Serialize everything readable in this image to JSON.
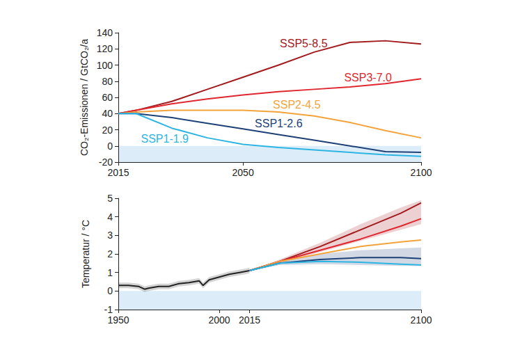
{
  "chart_data": [
    {
      "type": "line",
      "y_label": "CO₂-Emissionen / GtCO₂/a",
      "xlim": [
        2015,
        2100
      ],
      "xticks": [
        2015,
        2050,
        2100
      ],
      "ylim": [
        -20,
        140
      ],
      "yticks": [
        -20,
        0,
        20,
        40,
        60,
        80,
        100,
        120,
        140
      ],
      "grid": false,
      "legend": "inline",
      "bands": [
        {
          "from": -20,
          "to": 0
        }
      ],
      "x": [
        2015,
        2020,
        2030,
        2040,
        2050,
        2060,
        2070,
        2080,
        2090,
        2100
      ],
      "series": [
        {
          "name": "SSP5-8.5",
          "color": "#a3191c",
          "values": [
            40,
            44,
            55,
            70,
            85,
            100,
            116,
            128,
            130,
            126
          ]
        },
        {
          "name": "SSP3-7.0",
          "color": "#e0262f",
          "values": [
            40,
            44,
            52,
            58,
            63,
            67,
            70,
            73,
            77,
            83
          ]
        },
        {
          "name": "SSP2-4.5",
          "color": "#f3a33a",
          "values": [
            40,
            42,
            44,
            44,
            44,
            42,
            37,
            29,
            19,
            10
          ]
        },
        {
          "name": "SSP1-2.6",
          "color": "#1d4176",
          "values": [
            40,
            40,
            35,
            28,
            21,
            14,
            7,
            0,
            -7,
            -8
          ]
        },
        {
          "name": "SSP1-1.9",
          "color": "#2cb5e3",
          "values": [
            40,
            40,
            22,
            10,
            2,
            -2,
            -5,
            -8,
            -11,
            -13
          ]
        }
      ]
    },
    {
      "type": "line",
      "y_label": "Temperatur / °C",
      "xlim": [
        1950,
        2100
      ],
      "xticks": [
        1950,
        2000,
        2015,
        2100
      ],
      "ylim": [
        -1,
        5
      ],
      "yticks": [
        -1,
        0,
        1,
        2,
        3,
        4,
        5
      ],
      "grid": false,
      "bands": [
        {
          "from": -1,
          "to": 0
        }
      ],
      "series": [
        {
          "color": "#222222",
          "x": [
            1950,
            1955,
            1960,
            1963,
            1965,
            1970,
            1975,
            1980,
            1985,
            1990,
            1992,
            1995,
            2000,
            2005,
            2010,
            2015
          ],
          "values": [
            0.3,
            0.3,
            0.25,
            0.1,
            0.15,
            0.25,
            0.25,
            0.4,
            0.45,
            0.55,
            0.3,
            0.6,
            0.75,
            0.9,
            1.0,
            1.1
          ],
          "band": {
            "lower": [
              0.15,
              0.15,
              0.1,
              -0.05,
              0.0,
              0.1,
              0.1,
              0.25,
              0.3,
              0.4,
              0.15,
              0.45,
              0.6,
              0.75,
              0.85,
              0.95
            ],
            "upper": [
              0.45,
              0.45,
              0.4,
              0.25,
              0.3,
              0.4,
              0.4,
              0.55,
              0.6,
              0.7,
              0.45,
              0.75,
              0.9,
              1.05,
              1.15,
              1.25
            ]
          }
        },
        {
          "name": "SSP5-8.5",
          "color": "#a3191c",
          "x": [
            2015,
            2030,
            2050,
            2070,
            2090,
            2100
          ],
          "values": [
            1.1,
            1.6,
            2.4,
            3.3,
            4.2,
            4.75
          ],
          "band": {
            "lower": [
              1.1,
              1.5,
              2.1,
              2.7,
              3.3,
              3.6
            ],
            "upper": [
              1.1,
              1.7,
              2.6,
              3.6,
              4.5,
              4.9
            ]
          }
        },
        {
          "name": "SSP3-7.0",
          "color": "#e0262f",
          "x": [
            2015,
            2030,
            2050,
            2070,
            2090,
            2100
          ],
          "values": [
            1.1,
            1.6,
            2.2,
            2.8,
            3.5,
            3.9
          ]
        },
        {
          "name": "SSP2-4.5",
          "color": "#f3a33a",
          "x": [
            2015,
            2030,
            2050,
            2070,
            2090,
            2100
          ],
          "values": [
            1.1,
            1.6,
            2.0,
            2.4,
            2.65,
            2.75
          ]
        },
        {
          "name": "SSP1-2.6",
          "color": "#1d4176",
          "x": [
            2015,
            2030,
            2050,
            2070,
            2090,
            2100
          ],
          "values": [
            1.1,
            1.5,
            1.7,
            1.8,
            1.8,
            1.75
          ],
          "band": {
            "lower": [
              1.1,
              1.4,
              1.45,
              1.4,
              1.35,
              1.35
            ],
            "upper": [
              1.1,
              1.65,
              2.0,
              2.2,
              2.3,
              2.35
            ]
          }
        },
        {
          "name": "SSP1-1.9",
          "color": "#2cb5e3",
          "x": [
            2015,
            2030,
            2050,
            2070,
            2090,
            2100
          ],
          "values": [
            1.1,
            1.5,
            1.6,
            1.55,
            1.45,
            1.4
          ]
        }
      ]
    }
  ]
}
